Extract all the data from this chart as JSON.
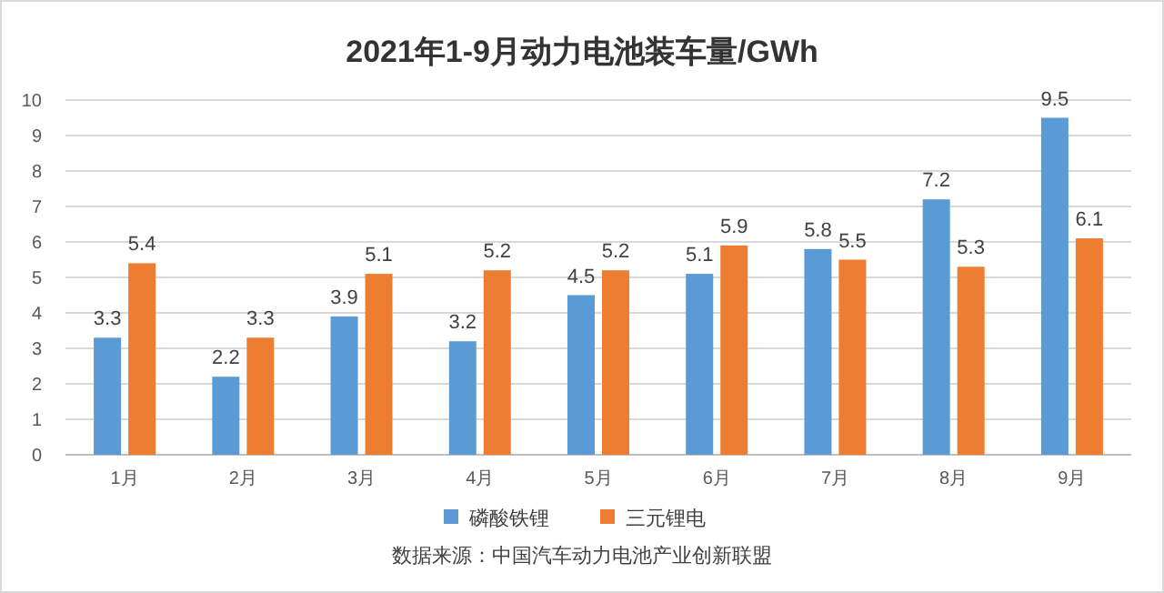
{
  "chart_data": {
    "type": "bar",
    "title": "2021年1-9月动力电池装车量/GWh",
    "categories": [
      "1月",
      "2月",
      "3月",
      "4月",
      "5月",
      "6月",
      "7月",
      "8月",
      "9月"
    ],
    "series": [
      {
        "name": "磷酸铁锂",
        "color": "#5b9bd5",
        "values": [
          3.3,
          2.2,
          3.9,
          3.2,
          4.5,
          5.1,
          5.8,
          7.2,
          9.5
        ]
      },
      {
        "name": "三元锂电",
        "color": "#ed7d31",
        "values": [
          5.4,
          3.3,
          5.1,
          5.2,
          5.2,
          5.9,
          5.5,
          5.3,
          6.1
        ]
      }
    ],
    "ylim": [
      0,
      10
    ],
    "yticks": [
      0,
      1,
      2,
      3,
      4,
      5,
      6,
      7,
      8,
      9,
      10
    ],
    "grid": "y",
    "legend": "bottom",
    "data_labels": true,
    "annotations": [
      "数据来源：中国汽车动力电池产业创新联盟"
    ]
  }
}
